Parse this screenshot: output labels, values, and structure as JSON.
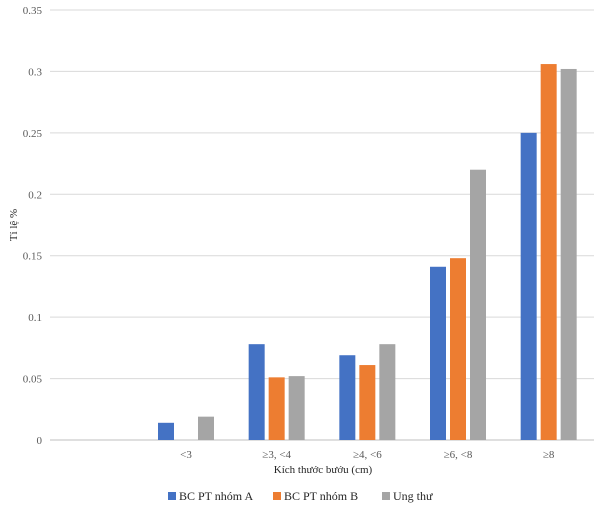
{
  "chart_data": {
    "type": "bar",
    "title": "",
    "xlabel": "Kích thước bướu (cm)",
    "ylabel": "Tỉ lệ %",
    "categories": [
      "",
      "<3",
      "≥3, <4",
      "≥4, <6",
      "≥6, <8",
      "≥8"
    ],
    "ylim": [
      0,
      0.35
    ],
    "yticks": [
      0,
      0.05,
      0.1,
      0.15,
      0.2,
      0.25,
      0.3,
      0.35
    ],
    "ytick_labels": [
      "0",
      "0.05",
      "0.1",
      "0.15",
      "0.2",
      "0.25",
      "0.3",
      "0.35"
    ],
    "grid": true,
    "legend_position": "bottom",
    "series": [
      {
        "name": "BC PT nhóm A",
        "color": "#4472C4",
        "values": [
          null,
          0.014,
          0.078,
          0.069,
          0.141,
          0.25
        ]
      },
      {
        "name": "BC PT nhóm B",
        "color": "#ED7D31",
        "values": [
          null,
          null,
          0.051,
          0.061,
          0.148,
          0.306
        ]
      },
      {
        "name": "Ung thư",
        "color": "#A5A5A5",
        "values": [
          null,
          0.019,
          0.052,
          0.078,
          0.22,
          0.302
        ]
      }
    ]
  }
}
